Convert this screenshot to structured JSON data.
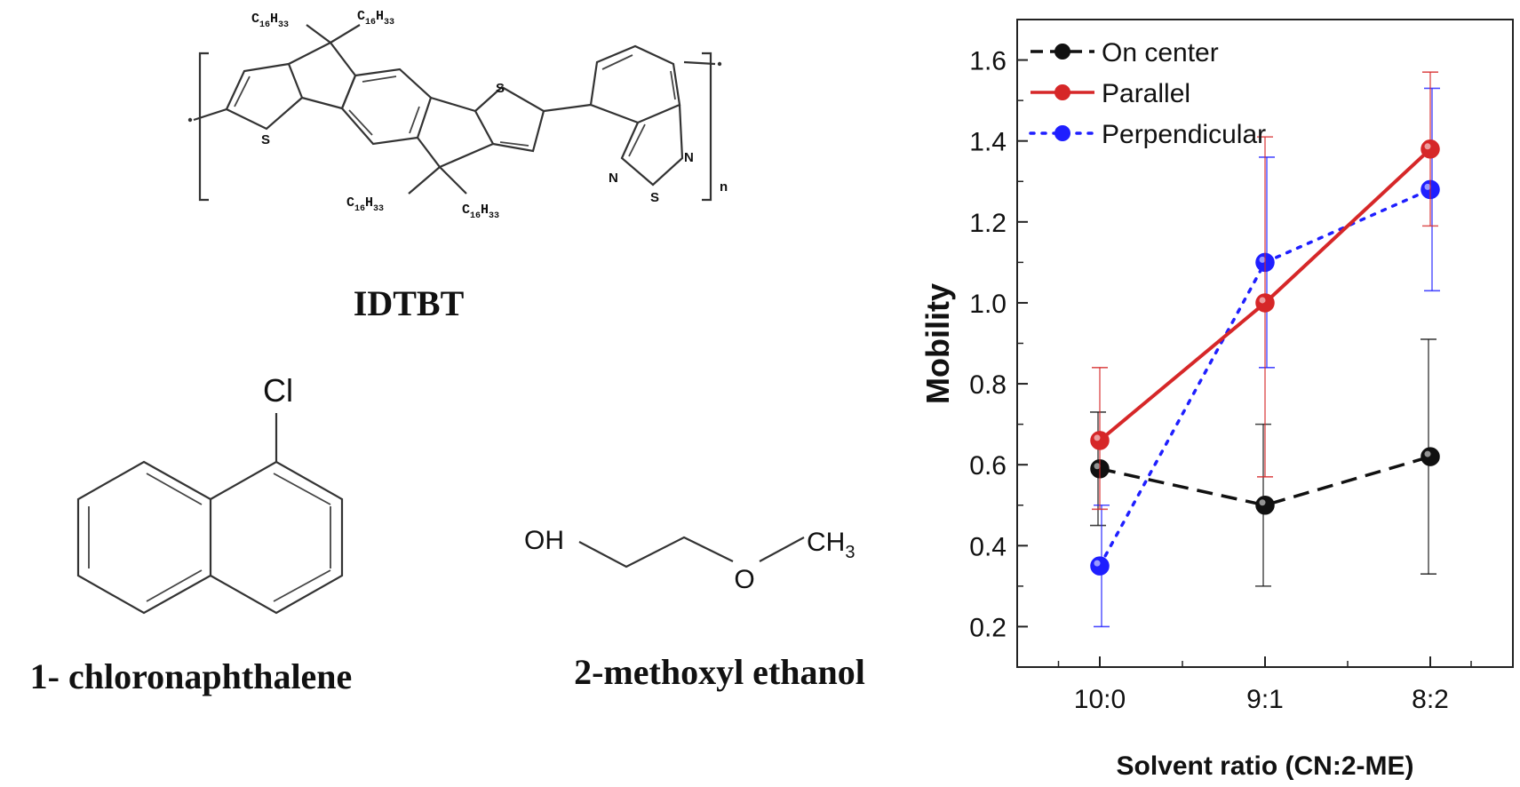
{
  "molecules": {
    "polymer": {
      "name": "IDTBT",
      "side_chain": "C16H33",
      "side_chain_base": "C",
      "side_chain_sub1": "16",
      "side_chain_mid": "H",
      "side_chain_sub2": "33",
      "atom_s": "S",
      "atom_n": "N",
      "repeat_n": "n"
    },
    "chloronaphthalene": {
      "name": "1- chloronaphthalene",
      "substituent": "Cl"
    },
    "methoxyethanol": {
      "name": "2-methoxyl ethanol",
      "oh": "OH",
      "o": "O",
      "ch3_base": "CH",
      "ch3_sub": "3"
    }
  },
  "chart_data": {
    "type": "line",
    "xlabel": "Solvent ratio (CN:2-ME)",
    "ylabel": "Mobility",
    "categories": [
      "10:0",
      "9:1",
      "8:2"
    ],
    "ylim": [
      0.1,
      1.7
    ],
    "yticks": [
      0.2,
      0.4,
      0.6,
      0.8,
      1.0,
      1.2,
      1.4,
      1.6
    ],
    "ytick_labels": [
      "0.2",
      "0.4",
      "0.6",
      "0.8",
      "1.0",
      "1.2",
      "1.4",
      "1.6"
    ],
    "legend_position": "top-left",
    "grid": false,
    "series": [
      {
        "name": "On center",
        "color": "#111111",
        "line_style": "dashed",
        "values": [
          0.59,
          0.5,
          0.62
        ],
        "err_low": [
          0.45,
          0.3,
          0.33
        ],
        "err_high": [
          0.73,
          0.7,
          0.91
        ]
      },
      {
        "name": "Parallel",
        "color": "#d62728",
        "line_style": "solid",
        "values": [
          0.66,
          1.0,
          1.38
        ],
        "err_low": [
          0.49,
          0.57,
          1.19
        ],
        "err_high": [
          0.84,
          1.41,
          1.57
        ]
      },
      {
        "name": "Perpendicular",
        "color": "#1f1fff",
        "line_style": "dotted",
        "values": [
          0.35,
          1.1,
          1.28
        ],
        "err_low": [
          0.2,
          0.84,
          1.03
        ],
        "err_high": [
          0.5,
          1.36,
          1.53
        ]
      }
    ]
  }
}
